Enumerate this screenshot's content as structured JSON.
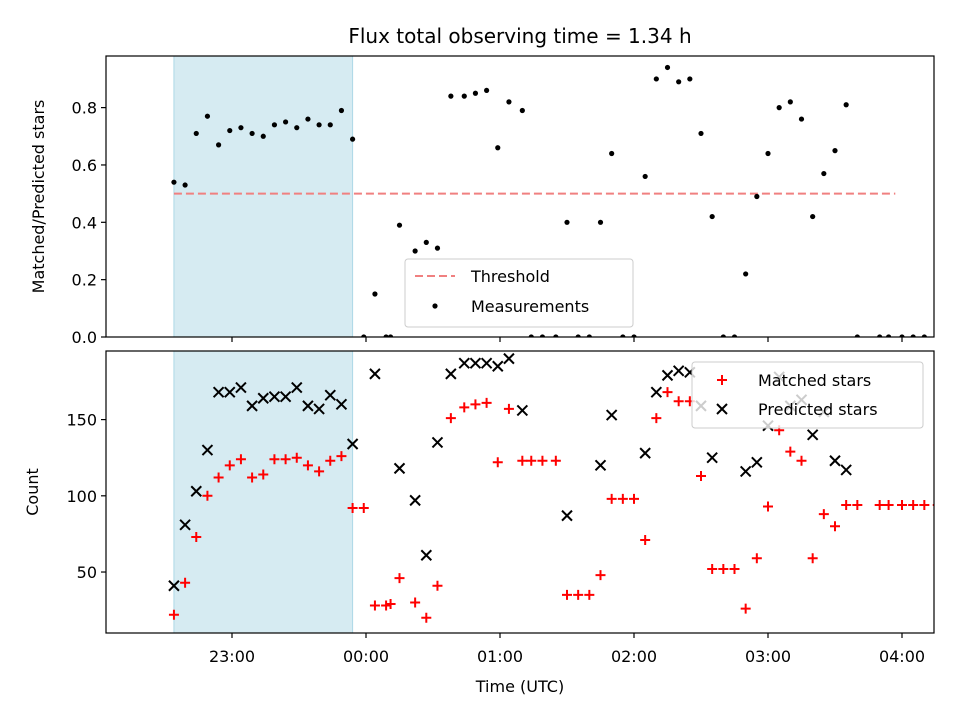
{
  "title": "Flux total observing time = 1.34 h",
  "xlabel": "Time (UTC)",
  "x_ticks": [
    "23:00",
    "00:00",
    "01:00",
    "02:00",
    "03:00",
    "04:00"
  ],
  "shaded_region": {
    "from": "22:34",
    "to": "23:54",
    "color": "#add8e6"
  },
  "chart_data": [
    {
      "type": "scatter",
      "ylabel": "Matched/Predicted stars",
      "ylim": [
        0,
        0.98
      ],
      "y_ticks": [
        "0.0",
        "0.2",
        "0.4",
        "0.6",
        "0.8"
      ],
      "threshold": {
        "name": "Threshold",
        "value": 0.5,
        "color": "#f08080",
        "x_from": "22:34",
        "x_to": "03:57"
      },
      "legend": {
        "position": "lower-center",
        "entries": [
          "Threshold",
          "Measurements"
        ]
      },
      "series": [
        {
          "name": "Measurements",
          "color": "#000000",
          "marker": "dot",
          "points": [
            [
              "22:34",
              0.54
            ],
            [
              "22:39",
              0.53
            ],
            [
              "22:44",
              0.71
            ],
            [
              "22:49",
              0.77
            ],
            [
              "22:54",
              0.67
            ],
            [
              "22:59",
              0.72
            ],
            [
              "23:04",
              0.73
            ],
            [
              "23:09",
              0.71
            ],
            [
              "23:14",
              0.7
            ],
            [
              "23:19",
              0.74
            ],
            [
              "23:24",
              0.75
            ],
            [
              "23:29",
              0.73
            ],
            [
              "23:34",
              0.76
            ],
            [
              "23:39",
              0.74
            ],
            [
              "23:44",
              0.74
            ],
            [
              "23:49",
              0.79
            ],
            [
              "23:54",
              0.69
            ],
            [
              "23:59",
              0.0
            ],
            [
              "00:04",
              0.15
            ],
            [
              "00:09",
              0.0
            ],
            [
              "00:11",
              0.0
            ],
            [
              "00:15",
              0.39
            ],
            [
              "00:22",
              0.3
            ],
            [
              "00:27",
              0.33
            ],
            [
              "00:32",
              0.31
            ],
            [
              "00:38",
              0.84
            ],
            [
              "00:44",
              0.84
            ],
            [
              "00:49",
              0.85
            ],
            [
              "00:54",
              0.86
            ],
            [
              "00:59",
              0.66
            ],
            [
              "01:04",
              0.82
            ],
            [
              "01:10",
              0.79
            ],
            [
              "01:14",
              0.0
            ],
            [
              "01:19",
              0.0
            ],
            [
              "01:25",
              0.0
            ],
            [
              "01:30",
              0.4
            ],
            [
              "01:35",
              0.0
            ],
            [
              "01:40",
              0.0
            ],
            [
              "01:45",
              0.4
            ],
            [
              "01:50",
              0.64
            ],
            [
              "01:55",
              0.0
            ],
            [
              "02:00",
              0.0
            ],
            [
              "02:05",
              0.56
            ],
            [
              "02:10",
              0.9
            ],
            [
              "02:15",
              0.94
            ],
            [
              "02:20",
              0.89
            ],
            [
              "02:25",
              0.9
            ],
            [
              "02:30",
              0.71
            ],
            [
              "02:35",
              0.42
            ],
            [
              "02:40",
              0.0
            ],
            [
              "02:45",
              0.0
            ],
            [
              "02:50",
              0.22
            ],
            [
              "02:55",
              0.49
            ],
            [
              "03:00",
              0.64
            ],
            [
              "03:05",
              0.8
            ],
            [
              "03:10",
              0.82
            ],
            [
              "03:15",
              0.76
            ],
            [
              "03:20",
              0.42
            ],
            [
              "03:25",
              0.57
            ],
            [
              "03:30",
              0.65
            ],
            [
              "03:35",
              0.81
            ],
            [
              "03:40",
              0.0
            ],
            [
              "03:50",
              0.0
            ],
            [
              "03:54",
              0.0
            ],
            [
              "04:00",
              0.0
            ],
            [
              "04:05",
              0.0
            ],
            [
              "04:10",
              0.0
            ],
            [
              "04:16",
              0.0
            ]
          ]
        }
      ]
    },
    {
      "type": "scatter",
      "ylabel": "Count",
      "ylim": [
        10,
        195
      ],
      "y_ticks": [
        "50",
        "100",
        "150"
      ],
      "y_tick_values": [
        50,
        100,
        150
      ],
      "legend": {
        "position": "upper-right",
        "entries": [
          "Matched stars",
          "Predicted stars"
        ]
      },
      "series": [
        {
          "name": "Matched stars",
          "color": "#ff0000",
          "marker": "plus",
          "points": [
            [
              "22:34",
              22
            ],
            [
              "22:39",
              43
            ],
            [
              "22:44",
              73
            ],
            [
              "22:49",
              100
            ],
            [
              "22:54",
              112
            ],
            [
              "22:59",
              120
            ],
            [
              "23:04",
              124
            ],
            [
              "23:09",
              112
            ],
            [
              "23:14",
              114
            ],
            [
              "23:19",
              124
            ],
            [
              "23:24",
              124
            ],
            [
              "23:29",
              125
            ],
            [
              "23:34",
              120
            ],
            [
              "23:39",
              116
            ],
            [
              "23:44",
              123
            ],
            [
              "23:49",
              126
            ],
            [
              "23:54",
              92
            ],
            [
              "23:59",
              92
            ],
            [
              "00:04",
              28
            ],
            [
              "00:09",
              28
            ],
            [
              "00:11",
              29
            ],
            [
              "00:15",
              46
            ],
            [
              "00:22",
              30
            ],
            [
              "00:27",
              20
            ],
            [
              "00:32",
              41
            ],
            [
              "00:38",
              151
            ],
            [
              "00:44",
              158
            ],
            [
              "00:49",
              160
            ],
            [
              "00:54",
              161
            ],
            [
              "00:59",
              122
            ],
            [
              "01:04",
              157
            ],
            [
              "01:10",
              123
            ],
            [
              "01:14",
              123
            ],
            [
              "01:19",
              123
            ],
            [
              "01:25",
              123
            ],
            [
              "01:30",
              35
            ],
            [
              "01:35",
              35
            ],
            [
              "01:40",
              35
            ],
            [
              "01:45",
              48
            ],
            [
              "01:50",
              98
            ],
            [
              "01:55",
              98
            ],
            [
              "02:00",
              98
            ],
            [
              "02:05",
              71
            ],
            [
              "02:10",
              151
            ],
            [
              "02:15",
              168
            ],
            [
              "02:20",
              162
            ],
            [
              "02:25",
              162
            ],
            [
              "02:30",
              113
            ],
            [
              "02:35",
              52
            ],
            [
              "02:40",
              52
            ],
            [
              "02:45",
              52
            ],
            [
              "02:50",
              26
            ],
            [
              "02:55",
              59
            ],
            [
              "03:00",
              93
            ],
            [
              "03:05",
              143
            ],
            [
              "03:10",
              129
            ],
            [
              "03:15",
              123
            ],
            [
              "03:20",
              59
            ],
            [
              "03:25",
              88
            ],
            [
              "03:30",
              80
            ],
            [
              "03:35",
              94
            ],
            [
              "03:40",
              94
            ],
            [
              "03:50",
              94
            ],
            [
              "03:54",
              94
            ],
            [
              "04:00",
              94
            ],
            [
              "04:05",
              94
            ],
            [
              "04:10",
              94
            ],
            [
              "04:16",
              94
            ]
          ]
        },
        {
          "name": "Predicted stars",
          "color": "#000000",
          "marker": "x",
          "points": [
            [
              "22:34",
              41
            ],
            [
              "22:39",
              81
            ],
            [
              "22:44",
              103
            ],
            [
              "22:49",
              130
            ],
            [
              "22:54",
              168
            ],
            [
              "22:59",
              168
            ],
            [
              "23:04",
              171
            ],
            [
              "23:09",
              159
            ],
            [
              "23:14",
              164
            ],
            [
              "23:19",
              165
            ],
            [
              "23:24",
              165
            ],
            [
              "23:29",
              171
            ],
            [
              "23:34",
              159
            ],
            [
              "23:39",
              157
            ],
            [
              "23:44",
              166
            ],
            [
              "23:49",
              160
            ],
            [
              "23:54",
              134
            ],
            [
              "00:04",
              180
            ],
            [
              "00:15",
              118
            ],
            [
              "00:22",
              97
            ],
            [
              "00:27",
              61
            ],
            [
              "00:32",
              135
            ],
            [
              "00:38",
              180
            ],
            [
              "00:44",
              187
            ],
            [
              "00:49",
              187
            ],
            [
              "00:54",
              187
            ],
            [
              "00:59",
              185
            ],
            [
              "01:04",
              190
            ],
            [
              "01:10",
              156
            ],
            [
              "01:30",
              87
            ],
            [
              "01:45",
              120
            ],
            [
              "01:50",
              153
            ],
            [
              "02:05",
              128
            ],
            [
              "02:10",
              168
            ],
            [
              "02:15",
              179
            ],
            [
              "02:20",
              182
            ],
            [
              "02:25",
              181
            ],
            [
              "02:30",
              159
            ],
            [
              "02:35",
              125
            ],
            [
              "02:50",
              116
            ],
            [
              "02:55",
              122
            ],
            [
              "03:00",
              146
            ],
            [
              "03:05",
              178
            ],
            [
              "03:10",
              159
            ],
            [
              "03:15",
              163
            ],
            [
              "03:20",
              140
            ],
            [
              "03:25",
              155
            ],
            [
              "03:30",
              123
            ],
            [
              "03:35",
              117
            ]
          ]
        }
      ]
    }
  ]
}
